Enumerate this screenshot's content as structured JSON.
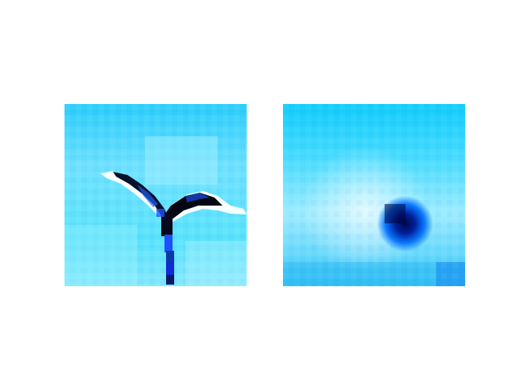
{
  "panels": [
    {
      "id": "left",
      "subject": "bird-in-flight"
    },
    {
      "id": "right",
      "subject": "dark-blob"
    }
  ],
  "colors": {
    "sky_light": "#bff3ff",
    "sky_mid": "#41d5ff",
    "sky_deep": "#00b4f5",
    "white": "#ffffff",
    "ink": "#050813",
    "navy": "#00157a",
    "blue": "#0057ff"
  }
}
